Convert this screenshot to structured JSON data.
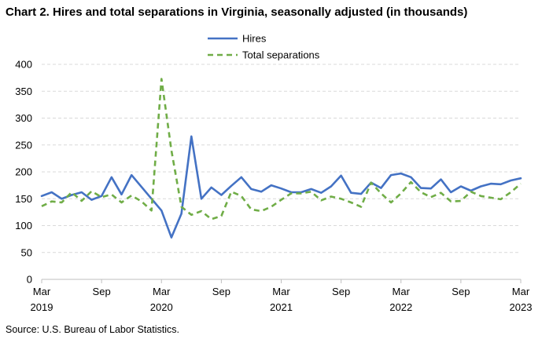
{
  "title": "Chart 2. Hires and total separations in Virginia, seasonally adjusted (in thousands)",
  "source": "Source: U.S. Bureau of Labor Statistics.",
  "colors": {
    "hires": "#4472C4",
    "separations": "#70AD47",
    "grid": "#d9d9d9",
    "axis": "#bfbfbf"
  },
  "chart_data": {
    "type": "line",
    "ylim": [
      0,
      400
    ],
    "yticks": [
      0,
      50,
      100,
      150,
      200,
      250,
      300,
      350,
      400
    ],
    "xticks": [
      {
        "index": 0,
        "month": "Mar",
        "year": "2019"
      },
      {
        "index": 6,
        "month": "Sep",
        "year": ""
      },
      {
        "index": 12,
        "month": "Mar",
        "year": "2020"
      },
      {
        "index": 18,
        "month": "Sep",
        "year": ""
      },
      {
        "index": 24,
        "month": "Mar",
        "year": "2021"
      },
      {
        "index": 30,
        "month": "Sep",
        "year": ""
      },
      {
        "index": 36,
        "month": "Mar",
        "year": "2022"
      },
      {
        "index": 42,
        "month": "Sep",
        "year": ""
      },
      {
        "index": 48,
        "month": "Mar",
        "year": "2023"
      }
    ],
    "legend_position": "top-center",
    "grid": true,
    "x": [
      "2019-03",
      "2019-04",
      "2019-05",
      "2019-06",
      "2019-07",
      "2019-08",
      "2019-09",
      "2019-10",
      "2019-11",
      "2019-12",
      "2020-01",
      "2020-02",
      "2020-03",
      "2020-04",
      "2020-05",
      "2020-06",
      "2020-07",
      "2020-08",
      "2020-09",
      "2020-10",
      "2020-11",
      "2020-12",
      "2021-01",
      "2021-02",
      "2021-03",
      "2021-04",
      "2021-05",
      "2021-06",
      "2021-07",
      "2021-08",
      "2021-09",
      "2021-10",
      "2021-11",
      "2021-12",
      "2022-01",
      "2022-02",
      "2022-03",
      "2022-04",
      "2022-05",
      "2022-06",
      "2022-07",
      "2022-08",
      "2022-09",
      "2022-10",
      "2022-11",
      "2022-12",
      "2023-01",
      "2023-02",
      "2023-03"
    ],
    "series": [
      {
        "name": "Hires",
        "style": "solid",
        "values": [
          155,
          162,
          150,
          157,
          162,
          148,
          155,
          190,
          158,
          194,
          172,
          150,
          128,
          78,
          122,
          266,
          150,
          171,
          157,
          174,
          190,
          168,
          163,
          175,
          169,
          162,
          162,
          168,
          161,
          173,
          193,
          161,
          159,
          180,
          170,
          194,
          197,
          190,
          170,
          169,
          186,
          162,
          173,
          165,
          173,
          178,
          177,
          184,
          188
        ]
      },
      {
        "name": "Total separations",
        "style": "dashed",
        "values": [
          136,
          145,
          143,
          162,
          146,
          164,
          153,
          158,
          143,
          156,
          145,
          128,
          373,
          240,
          135,
          120,
          127,
          112,
          118,
          163,
          155,
          130,
          127,
          135,
          148,
          160,
          160,
          163,
          147,
          154,
          150,
          143,
          135,
          180,
          160,
          143,
          160,
          181,
          162,
          153,
          161,
          145,
          146,
          163,
          155,
          152,
          149,
          162,
          178
        ]
      }
    ]
  }
}
